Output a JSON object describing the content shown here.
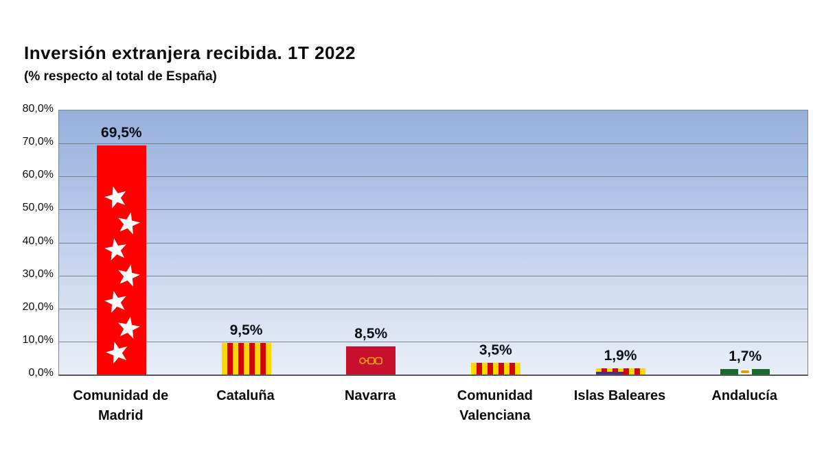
{
  "title": "Inversión extranjera recibida. 1T 2022",
  "subtitle": "(% respecto al total de España)",
  "chart_data": {
    "type": "bar",
    "title": "Inversión extranjera recibida. 1T 2022",
    "subtitle": "(% respecto al total de España)",
    "xlabel": "",
    "ylabel": "",
    "categories": [
      "Comunidad de Madrid",
      "Cataluña",
      "Navarra",
      "Comunidad Valenciana",
      "Islas Baleares",
      "Andalucía"
    ],
    "values": [
      69.5,
      9.5,
      8.5,
      3.5,
      1.9,
      1.7
    ],
    "value_labels": [
      "69,5%",
      "9,5%",
      "8,5%",
      "3,5%",
      "1,9%",
      "1,7%"
    ],
    "ylim": [
      0,
      80
    ],
    "y_ticks": [
      "80,0%",
      "70,0%",
      "60,0%",
      "50,0%",
      "40,0%",
      "30,0%",
      "20,0%",
      "10,0%",
      "0,0%"
    ],
    "grid": true,
    "legend": "none",
    "bar_fill_style": "regional-flag-patterns",
    "colors": {
      "madrid_red": "#FE0000",
      "senyera_yellow": "#FFD800",
      "senyera_red": "#D80000",
      "navarra_red": "#C8102E",
      "navarra_gold": "#E8B007",
      "baleares_purple": "#4B2E83",
      "andalucia_green": "#156B2E",
      "plot_bg_top": "#96B0DC",
      "plot_bg_bottom": "#E9EFF8",
      "gridline": "#6E737B"
    }
  }
}
